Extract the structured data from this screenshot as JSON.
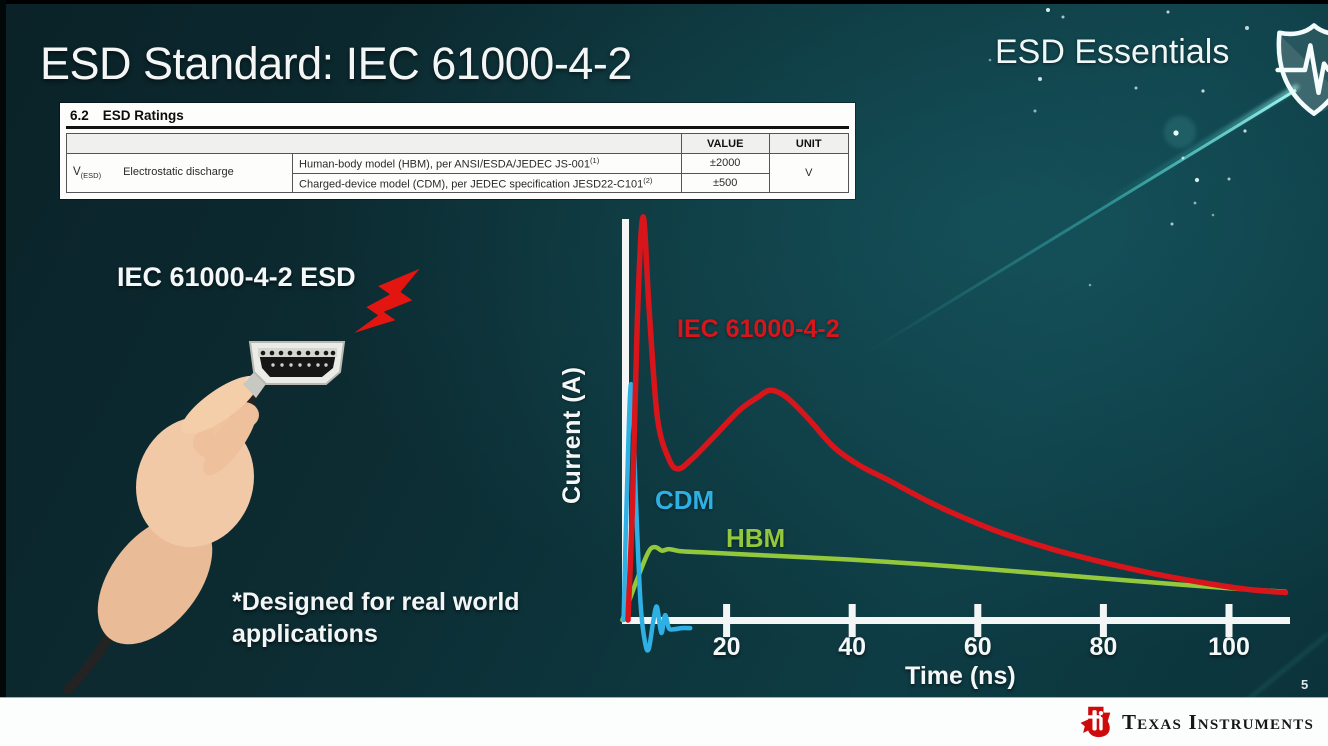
{
  "slide": {
    "title": "ESD Standard: IEC 61000-4-2",
    "brand": "ESD Essentials",
    "page_number": "5"
  },
  "theme": {
    "background_teal": "#0c2e35",
    "accent_streak": "#5ae0dc",
    "axis_white": "#f4f6f6",
    "footer_bg": "#fcfdfd",
    "ti_red": "#cf0a0a",
    "bolt_red": "#e31511"
  },
  "ratings_table": {
    "section_number": "6.2",
    "section_title": "ESD Ratings",
    "value_header": "VALUE",
    "unit_header": "UNIT",
    "param_symbol": "V",
    "param_subscript": "(ESD)",
    "param_name": "Electrostatic discharge",
    "rows": [
      {
        "description": "Human-body model (HBM), per ANSI/ESDA/JEDEC JS-001",
        "superscript": "(1)",
        "value": "±2000"
      },
      {
        "description": "Charged-device model (CDM), per JEDEC specification JESD22-C101",
        "superscript": "(2)",
        "value": "±500"
      }
    ],
    "unit": "V"
  },
  "illustration": {
    "caption": "IEC 61000-4-2 ESD",
    "footnote": "*Designed for real world applications"
  },
  "footer": {
    "logo_text": "Texas Instruments"
  },
  "chart_data": {
    "type": "line",
    "title": "",
    "xlabel": "Time (ns)",
    "ylabel": "Current (A)",
    "x_ticks": [
      20,
      40,
      60,
      80,
      100
    ],
    "xlim": [
      0,
      110
    ],
    "ylim": [
      -0.12,
      1.05
    ],
    "y_axis_tick_labels": "none (relative amplitude)",
    "grid": false,
    "legend_position": "labels beside curves",
    "series": [
      {
        "name": "IEC 61000-4-2",
        "color": "#d8151b",
        "points": [
          [
            4.3,
            0.0
          ],
          [
            5.0,
            0.28
          ],
          [
            5.8,
            0.75
          ],
          [
            6.7,
            1.0
          ],
          [
            7.7,
            0.76
          ],
          [
            9.0,
            0.5
          ],
          [
            10.8,
            0.4
          ],
          [
            12.3,
            0.375
          ],
          [
            14.5,
            0.4
          ],
          [
            18,
            0.455
          ],
          [
            22,
            0.52
          ],
          [
            25,
            0.553
          ],
          [
            27,
            0.57
          ],
          [
            29.5,
            0.553
          ],
          [
            33,
            0.5
          ],
          [
            37,
            0.43
          ],
          [
            41,
            0.385
          ],
          [
            46,
            0.345
          ],
          [
            52,
            0.295
          ],
          [
            58,
            0.252
          ],
          [
            64,
            0.215
          ],
          [
            72,
            0.175
          ],
          [
            80,
            0.143
          ],
          [
            88,
            0.115
          ],
          [
            96,
            0.092
          ],
          [
            103,
            0.076
          ],
          [
            109,
            0.068
          ]
        ]
      },
      {
        "name": "CDM",
        "color": "#2fb0e5",
        "points": [
          [
            3.6,
            0.0
          ],
          [
            4.1,
            0.3
          ],
          [
            4.8,
            0.585
          ],
          [
            5.6,
            0.28
          ],
          [
            6.3,
            0.04
          ],
          [
            7.0,
            -0.055
          ],
          [
            7.6,
            -0.072
          ],
          [
            8.3,
            -0.005
          ],
          [
            8.9,
            0.033
          ],
          [
            9.6,
            -0.032
          ],
          [
            10.2,
            0.012
          ],
          [
            10.8,
            -0.02
          ],
          [
            11.6,
            -0.023
          ],
          [
            12.8,
            -0.02
          ],
          [
            14.2,
            -0.02
          ]
        ]
      },
      {
        "name": "HBM",
        "color": "#93c83d",
        "points": [
          [
            3.4,
            0.0
          ],
          [
            5.5,
            0.09
          ],
          [
            7.5,
            0.167
          ],
          [
            8.6,
            0.181
          ],
          [
            9.7,
            0.172
          ],
          [
            10.8,
            0.176
          ],
          [
            12.5,
            0.171
          ],
          [
            16,
            0.168
          ],
          [
            24,
            0.162
          ],
          [
            32,
            0.156
          ],
          [
            44,
            0.146
          ],
          [
            56,
            0.133
          ],
          [
            68,
            0.118
          ],
          [
            80,
            0.103
          ],
          [
            92,
            0.088
          ],
          [
            100,
            0.079
          ],
          [
            105,
            0.074
          ],
          [
            109,
            0.07
          ]
        ]
      }
    ]
  }
}
